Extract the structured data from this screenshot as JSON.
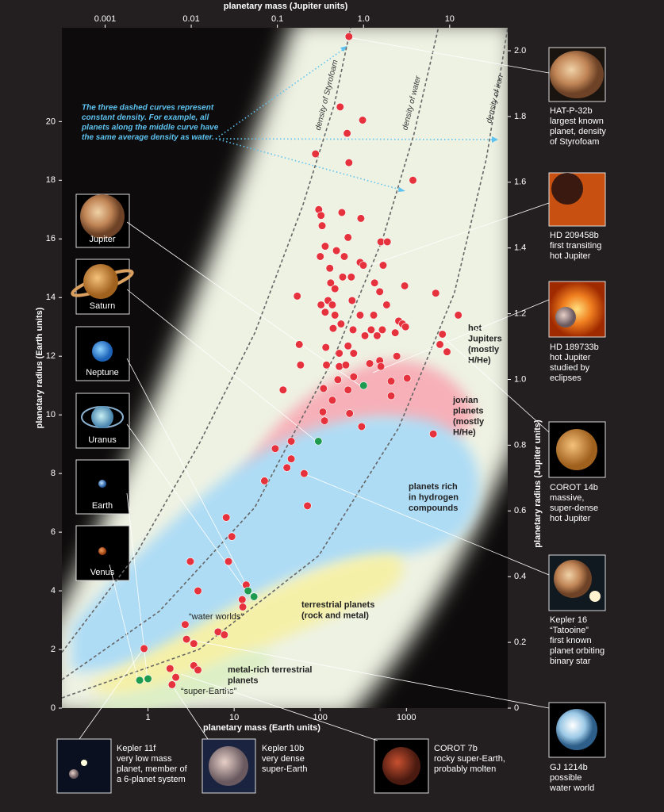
{
  "chart_data": {
    "type": "scatter",
    "x_label": "planetary mass (Earth units)",
    "y_label": "planetary radius (Earth units)",
    "x2_label": "planetary mass (Jupiter units)",
    "y2_label": "planetary radius (Jupiter units)",
    "xscale": "log",
    "xlim": [
      0.1,
      15000
    ],
    "xticks": [
      1,
      10,
      100,
      1000
    ],
    "ylim": [
      0,
      23.2
    ],
    "yticks": [
      0,
      2,
      4,
      6,
      8,
      10,
      12,
      14,
      16,
      18,
      20
    ],
    "x2lim": [
      0.000315,
      47.2
    ],
    "x2ticks": [
      0.001,
      0.01,
      0.1,
      {
        "value": 1,
        "label": "1.0"
      },
      10
    ],
    "y2lim": [
      0,
      2.07
    ],
    "y2ticks": [
      0,
      0.2,
      0.4,
      0.6,
      0.8,
      {
        "value": 1,
        "label": "1.0"
      },
      1.2,
      1.4,
      1.6,
      1.8,
      {
        "value": 2,
        "label": "2.0"
      }
    ],
    "series": [
      {
        "color": "#e5323d",
        "x": [
          215,
          170,
          310,
          205,
          88,
          215,
          1190,
          96,
          102,
          178,
          296,
          105,
          210,
          505,
          600,
          114,
          154,
          100,
          190,
          290,
          316,
          537,
          129,
          182,
          229,
          132,
          427,
          955,
          2190,
          54,
          148,
          490,
          123,
          234,
          102,
          138,
          589,
          114,
          148,
          290,
          4000,
          417,
          813,
          900,
          174,
          141,
          240,
          977,
          390,
          525,
          741,
          330,
          2620,
          457,
          57,
          116,
          210,
          2450,
          166,
          2960,
          244,
          773,
          490,
          375,
          59,
          118,
          166,
          198,
          505,
          1020,
          665,
          160,
          244,
          37,
          109,
          210,
          138,
          665,
          107,
          219,
          112,
          302,
          46,
          2050,
          30,
          46,
          41,
          65,
          22.5,
          71,
          8.1,
          9.4,
          8.6,
          3.1,
          3.8,
          13.8,
          12.4,
          12.6,
          2.7,
          2.8,
          6.5,
          7.7,
          3.4,
          0.9,
          3.4,
          3.8,
          1.8,
          2.1,
          1.9
        ],
        "values": [
          22.9,
          20.5,
          20.05,
          19.6,
          18.9,
          18.6,
          18.0,
          17.0,
          16.8,
          16.9,
          16.7,
          16.45,
          16.05,
          15.9,
          15.9,
          15.75,
          15.6,
          15.4,
          15.4,
          15.2,
          15.1,
          15.1,
          15.0,
          14.7,
          14.7,
          14.5,
          14.5,
          14.4,
          14.15,
          14.05,
          14.3,
          14.2,
          13.9,
          13.9,
          13.75,
          13.75,
          13.75,
          13.5,
          13.4,
          13.4,
          13.4,
          13.4,
          13.2,
          13.1,
          13.1,
          12.95,
          12.9,
          13.0,
          12.9,
          12.9,
          12.8,
          12.7,
          12.75,
          12.7,
          12.4,
          12.3,
          12.35,
          12.4,
          12.1,
          12.15,
          12.1,
          12.0,
          11.85,
          11.75,
          11.7,
          11.7,
          11.65,
          11.7,
          11.65,
          11.25,
          11.15,
          11.2,
          11.3,
          10.85,
          10.9,
          10.85,
          10.5,
          10.65,
          10.1,
          10.05,
          9.8,
          9.6,
          9.1,
          9.35,
          8.85,
          8.5,
          8.2,
          8.0,
          7.75,
          6.9,
          6.5,
          5.85,
          5.0,
          5.0,
          4.0,
          4.2,
          3.7,
          3.45,
          2.85,
          2.35,
          2.6,
          2.5,
          2.2,
          2.03,
          1.45,
          1.3,
          1.35,
          1.05,
          0.8
        ]
      },
      {
        "color": "#1e9b4e",
        "x": [
          318,
          95,
          17,
          14.5,
          1,
          0.8
        ],
        "values": [
          11.0,
          9.1,
          3.8,
          4.0,
          1.0,
          0.95
        ]
      }
    ],
    "density_curves": [
      {
        "label": "density of Styrofoam",
        "x": [
          0.1,
          0.71,
          3.9,
          17.4,
          62,
          146,
          225
        ],
        "values": [
          1.9,
          5.2,
          9.0,
          12.8,
          17.1,
          20.6,
          23.2
        ]
      },
      {
        "label": "density of water",
        "x": [
          0.1,
          1.35,
          17.4,
          146,
          530,
          1230,
          2350
        ],
        "values": [
          0.97,
          3.3,
          6.85,
          12.0,
          16.0,
          19.6,
          23.2
        ]
      },
      {
        "label": "density of iron",
        "x": [
          0.1,
          3.9,
          96,
          810,
          3600,
          8500,
          15000
        ],
        "values": [
          0.35,
          2.0,
          5.2,
          9.55,
          14.15,
          18.75,
          23.2
        ]
      }
    ],
    "note": [
      "The three dashed curves represent",
      "constant density. For example, all",
      "planets along the middle curve have",
      "the same average density as water."
    ],
    "region_labels": [
      [
        "hot",
        "Jupiters",
        "(mostly",
        "H/He)"
      ],
      [
        "jovian",
        "planets",
        "(mostly",
        "H/He)"
      ],
      [
        "planets rich",
        "in hydrogen",
        "compounds"
      ],
      [
        "terrestrial planets",
        "(rock and metal)"
      ],
      [
        "metal-rich terrestrial",
        "planets"
      ],
      [
        "“water worlds”"
      ],
      [
        "“super-Earths”"
      ]
    ],
    "planet_labels": [
      "Jupiter",
      "Saturn",
      "Neptune",
      "Uranus",
      "Earth",
      "Venus"
    ],
    "callouts": [
      [
        "HAT-P-32b",
        "largest known",
        "planet, density",
        "of Styrofoam"
      ],
      [
        "HD 209458b",
        "first transiting",
        "hot Jupiter"
      ],
      [
        "HD 189733b",
        "hot Jupiter",
        "studied by",
        "eclipses"
      ],
      [
        "COROT 14b",
        "massive,",
        "super-dense",
        "hot Jupiter"
      ],
      [
        "Kepler 16",
        "“Tatooine”",
        "first known",
        "planet orbiting",
        "binary star"
      ],
      [
        "GJ 1214b",
        "possible",
        "water world"
      ],
      [
        "Kepler 11f",
        "very low mass",
        "planet, member of",
        "a 6-planet system"
      ],
      [
        "Kepler 10b",
        "very dense",
        "super-Earth"
      ],
      [
        "COROT 7b",
        "rocky super-Earth,",
        "probably molten"
      ]
    ]
  }
}
